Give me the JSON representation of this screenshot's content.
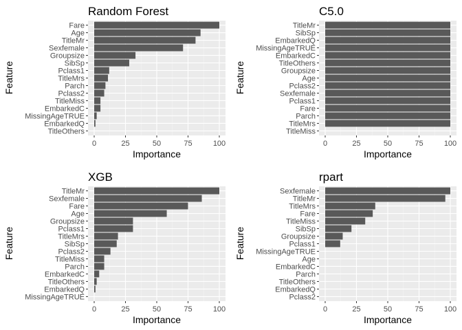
{
  "style": {
    "panel_bg": "#ebebeb",
    "grid_major": "#ffffff",
    "grid_minor": "#f5f5f5",
    "bar_fill": "#595959",
    "tick_text": "#4d4d4d",
    "tick_mark": "#333333"
  },
  "chart_data": [
    {
      "type": "bar",
      "orientation": "horizontal",
      "title": "Random Forest",
      "xlabel": "Importance",
      "ylabel": "Feature",
      "xlim": [
        0,
        100
      ],
      "xticks": [
        0,
        25,
        50,
        75,
        100
      ],
      "grid": true,
      "categories": [
        "Fare",
        "Age",
        "TitleMr",
        "Sexfemale",
        "Groupsize",
        "SibSp",
        "Pclass1",
        "TitleMrs",
        "Parch",
        "Pclass2",
        "TitleMiss",
        "EmbarkedC",
        "MissingAgeTRUE",
        "EmbarkedQ",
        "TitleOthers"
      ],
      "values": [
        100,
        85,
        81,
        71,
        33,
        28,
        12,
        11,
        9,
        8,
        5,
        5,
        2,
        1,
        0
      ]
    },
    {
      "type": "bar",
      "orientation": "horizontal",
      "title": "C5.0",
      "xlabel": "Importance",
      "ylabel": "Feature",
      "xlim": [
        0,
        100
      ],
      "xticks": [
        0,
        25,
        50,
        75,
        100
      ],
      "grid": true,
      "categories": [
        "TitleMr",
        "SibSp",
        "EmbarkedQ",
        "MissingAgeTRUE",
        "EmbarkedC",
        "TitleOthers",
        "Groupsize",
        "Age",
        "Pclass2",
        "Sexfemale",
        "Pclass1",
        "Fare",
        "Parch",
        "TitleMrs",
        "TitleMiss"
      ],
      "values": [
        100,
        100,
        100,
        100,
        100,
        100,
        100,
        100,
        100,
        100,
        100,
        100,
        100,
        100,
        0
      ]
    },
    {
      "type": "bar",
      "orientation": "horizontal",
      "title": "XGB",
      "xlabel": "Importance",
      "ylabel": "Feature",
      "xlim": [
        0,
        100
      ],
      "xticks": [
        0,
        25,
        50,
        75,
        100
      ],
      "grid": true,
      "categories": [
        "TitleMr",
        "Sexfemale",
        "Fare",
        "Age",
        "Groupsize",
        "Pclass1",
        "TitleMrs",
        "SibSp",
        "Pclass2",
        "TitleMiss",
        "Parch",
        "EmbarkedC",
        "TitleOthers",
        "EmbarkedQ",
        "MissingAgeTRUE"
      ],
      "values": [
        100,
        86,
        75,
        58,
        31,
        31,
        19,
        18,
        13,
        8,
        8,
        4,
        2,
        1,
        0
      ]
    },
    {
      "type": "bar",
      "orientation": "horizontal",
      "title": "rpart",
      "xlabel": "Importance",
      "ylabel": "Feature",
      "xlim": [
        0,
        100
      ],
      "xticks": [
        0,
        25,
        50,
        75,
        100
      ],
      "grid": true,
      "categories": [
        "Sexfemale",
        "TitleMr",
        "TitleMrs",
        "Fare",
        "TitleMiss",
        "SibSp",
        "Groupsize",
        "Pclass1",
        "MissingAgeTRUE",
        "Age",
        "EmbarkedC",
        "Parch",
        "TitleOthers",
        "EmbarkedQ",
        "Pclass2"
      ],
      "values": [
        100,
        96,
        40,
        38,
        32,
        21,
        14,
        12,
        0,
        0,
        0,
        0,
        0,
        0,
        0
      ]
    }
  ]
}
